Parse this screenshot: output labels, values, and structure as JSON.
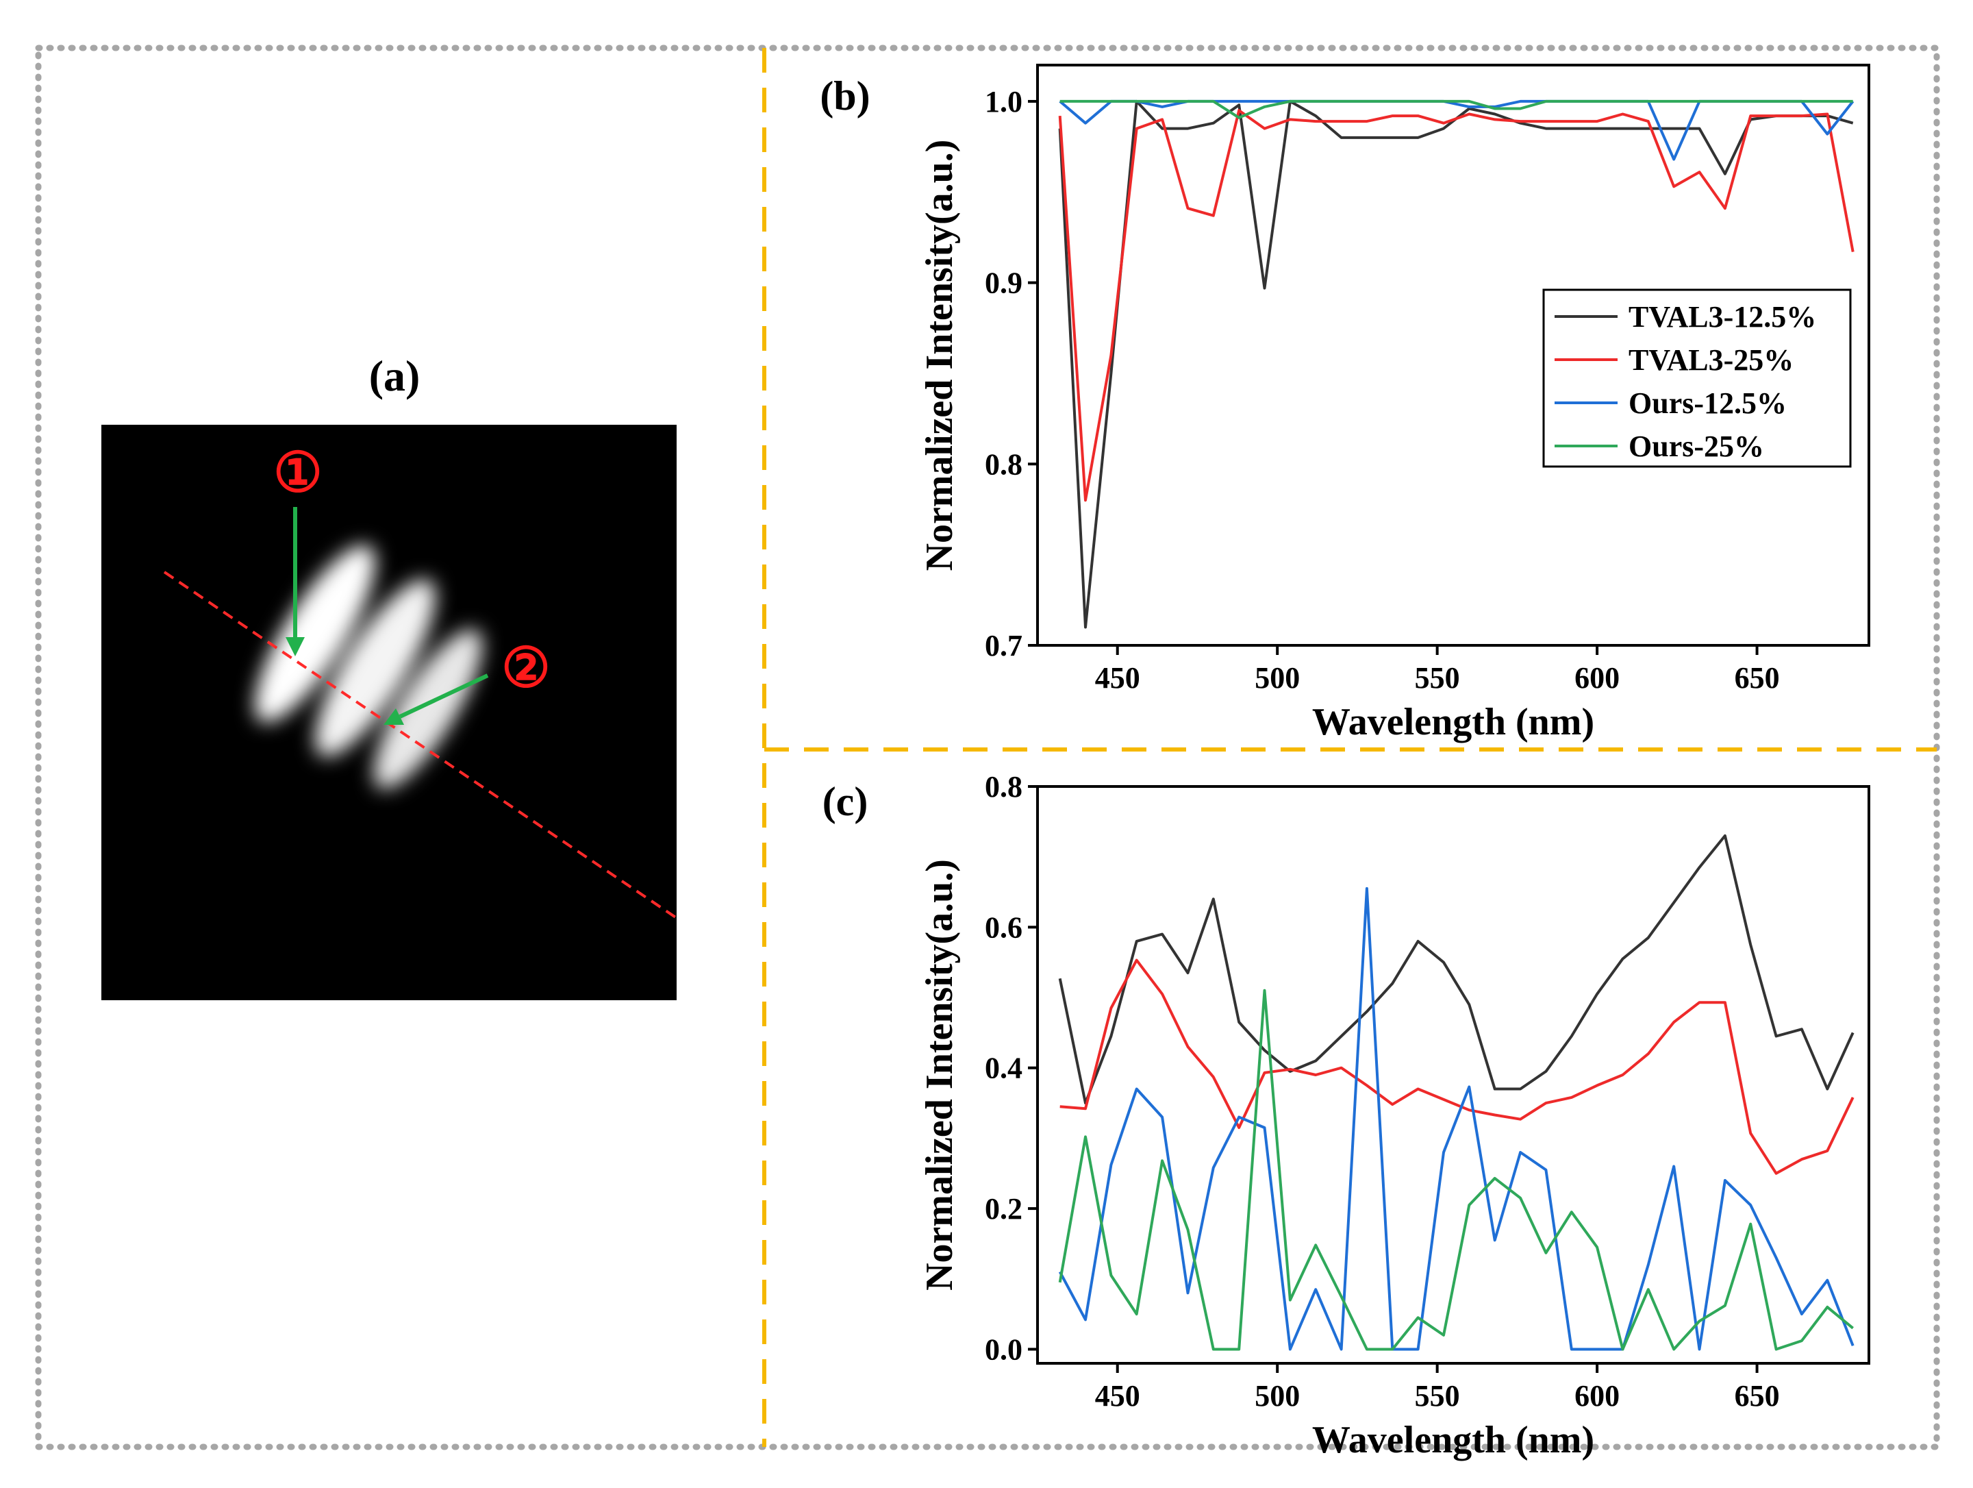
{
  "panel_a": {
    "label": "(a)",
    "marker1": "①",
    "marker2": "②",
    "colors": {
      "background": "#000000",
      "stripe": "#ffffff",
      "dashed_line": "#ff2a2a",
      "arrow": "#22b14c",
      "marker": "#ff1a1a"
    }
  },
  "panel_b": {
    "label": "(b)"
  },
  "panel_c": {
    "label": "(c)"
  },
  "colors": {
    "border": "#a6a6a6",
    "divider": "#f5b800"
  },
  "chart_data": [
    {
      "panel": "(b)",
      "type": "line",
      "xlabel": "Wavelength (nm)",
      "ylabel": "Normalized Intensity(a.u.)",
      "xlim": [
        425,
        685
      ],
      "ylim": [
        0.7,
        1.02
      ],
      "xticks": [
        450,
        500,
        550,
        600,
        650
      ],
      "yticks": [
        0.7,
        0.8,
        0.9,
        1.0
      ],
      "xtick_labels": [
        "450",
        "500",
        "550",
        "600",
        "650"
      ],
      "ytick_labels": [
        "0.7",
        "0.8",
        "0.9",
        "1.0"
      ],
      "grid": false,
      "legend_position": "center-right",
      "x": [
        432,
        440,
        448,
        456,
        464,
        472,
        480,
        488,
        496,
        504,
        512,
        520,
        528,
        536,
        544,
        552,
        560,
        568,
        576,
        584,
        592,
        600,
        608,
        616,
        624,
        632,
        640,
        648,
        656,
        664,
        672,
        680
      ],
      "series": [
        {
          "name": "TVAL3-12.5%",
          "color": "#333333",
          "values": [
            0.985,
            0.71,
            0.85,
            1.0,
            0.985,
            0.985,
            0.988,
            0.998,
            0.897,
            1.0,
            0.992,
            0.98,
            0.98,
            0.98,
            0.98,
            0.985,
            0.996,
            0.993,
            0.988,
            0.985,
            0.985,
            0.985,
            0.985,
            0.985,
            0.985,
            0.985,
            0.96,
            0.99,
            0.992,
            0.992,
            0.992,
            0.988
          ]
        },
        {
          "name": "TVAL3-25%",
          "color": "#ee2a2a",
          "values": [
            0.992,
            0.78,
            0.86,
            0.985,
            0.99,
            0.941,
            0.937,
            0.995,
            0.985,
            0.99,
            0.989,
            0.989,
            0.989,
            0.992,
            0.992,
            0.988,
            0.993,
            0.99,
            0.989,
            0.989,
            0.989,
            0.989,
            0.993,
            0.989,
            0.953,
            0.961,
            0.941,
            0.992,
            0.992,
            0.992,
            0.993,
            0.917
          ]
        },
        {
          "name": "Ours-12.5%",
          "color": "#1f6fd6",
          "values": [
            1.0,
            0.988,
            1.0,
            1.0,
            0.997,
            1.0,
            1.0,
            1.0,
            1.0,
            1.0,
            1.0,
            1.0,
            1.0,
            1.0,
            1.0,
            1.0,
            0.997,
            0.997,
            1.0,
            1.0,
            1.0,
            1.0,
            1.0,
            1.0,
            0.968,
            1.0,
            1.0,
            1.0,
            1.0,
            1.0,
            0.982,
            1.0
          ]
        },
        {
          "name": "Ours-25%",
          "color": "#2fa85a",
          "values": [
            1.0,
            1.0,
            1.0,
            1.0,
            1.0,
            1.0,
            1.0,
            0.991,
            0.997,
            1.0,
            1.0,
            1.0,
            1.0,
            1.0,
            1.0,
            1.0,
            1.0,
            0.996,
            0.996,
            1.0,
            1.0,
            1.0,
            1.0,
            1.0,
            1.0,
            1.0,
            1.0,
            1.0,
            1.0,
            1.0,
            1.0,
            1.0
          ]
        }
      ]
    },
    {
      "panel": "(c)",
      "type": "line",
      "xlabel": "Wavelength (nm)",
      "ylabel": "Normalized Intensity(a.u.)",
      "xlim": [
        425,
        685
      ],
      "ylim": [
        -0.02,
        0.8
      ],
      "xticks": [
        450,
        500,
        550,
        600,
        650
      ],
      "yticks": [
        0.0,
        0.2,
        0.4,
        0.6,
        0.8
      ],
      "xtick_labels": [
        "450",
        "500",
        "550",
        "600",
        "650"
      ],
      "ytick_labels": [
        "0.0",
        "0.2",
        "0.4",
        "0.6",
        "0.8"
      ],
      "grid": false,
      "x": [
        432,
        440,
        448,
        456,
        464,
        472,
        480,
        488,
        496,
        504,
        512,
        520,
        528,
        536,
        544,
        552,
        560,
        568,
        576,
        584,
        592,
        600,
        608,
        616,
        624,
        632,
        640,
        648,
        656,
        664,
        672,
        680
      ],
      "series": [
        {
          "color": "#333333",
          "values": [
            0.527,
            0.35,
            0.445,
            0.58,
            0.59,
            0.535,
            0.64,
            0.465,
            0.425,
            0.395,
            0.41,
            0.445,
            0.48,
            0.52,
            0.58,
            0.55,
            0.49,
            0.37,
            0.37,
            0.395,
            0.445,
            0.505,
            0.555,
            0.585,
            0.635,
            0.685,
            0.73,
            0.575,
            0.445,
            0.455,
            0.37,
            0.45
          ]
        },
        {
          "color": "#ee2a2a",
          "values": [
            0.345,
            0.342,
            0.485,
            0.553,
            0.505,
            0.43,
            0.387,
            0.315,
            0.393,
            0.398,
            0.39,
            0.4,
            0.375,
            0.348,
            0.37,
            0.355,
            0.34,
            0.333,
            0.327,
            0.35,
            0.358,
            0.375,
            0.39,
            0.42,
            0.465,
            0.493,
            0.493,
            0.307,
            0.25,
            0.27,
            0.282,
            0.358
          ]
        },
        {
          "color": "#1f6fd6",
          "values": [
            0.11,
            0.042,
            0.262,
            0.37,
            0.33,
            0.08,
            0.258,
            0.33,
            0.315,
            0.0,
            0.085,
            0.0,
            0.655,
            0.0,
            0.0,
            0.28,
            0.373,
            0.155,
            0.28,
            0.255,
            0.0,
            0.0,
            0.0,
            0.12,
            0.26,
            0.0,
            0.24,
            0.205,
            0.13,
            0.05,
            0.098,
            0.005
          ]
        },
        {
          "color": "#2fa85a",
          "values": [
            0.095,
            0.302,
            0.105,
            0.05,
            0.268,
            0.17,
            0.0,
            0.0,
            0.51,
            0.07,
            0.148,
            0.075,
            0.0,
            0.0,
            0.045,
            0.02,
            0.205,
            0.243,
            0.215,
            0.137,
            0.195,
            0.145,
            0.0,
            0.085,
            0.0,
            0.04,
            0.062,
            0.178,
            0.0,
            0.012,
            0.06,
            0.03
          ]
        }
      ]
    }
  ]
}
